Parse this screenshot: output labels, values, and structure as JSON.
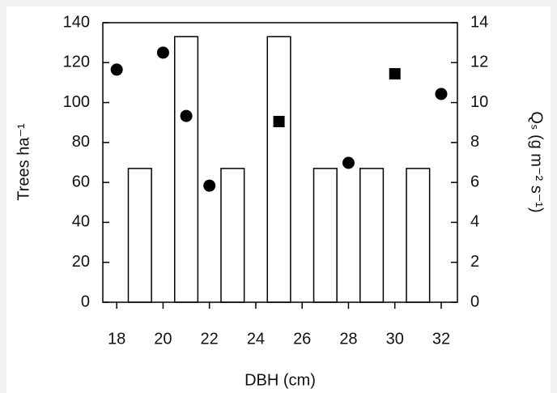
{
  "chart_data": {
    "type": "bar",
    "x_label": "DBH (cm)",
    "y_label": "Trees ha⁻¹",
    "y2_label": "Qₛ (g m⁻² s⁻¹)",
    "xlim": [
      17.4,
      32.7
    ],
    "xticks": [
      18,
      20,
      22,
      24,
      26,
      28,
      30,
      32
    ],
    "ylim": [
      0,
      140
    ],
    "yticks": [
      0,
      20,
      40,
      60,
      80,
      100,
      120,
      140
    ],
    "y2lim": [
      0,
      14
    ],
    "y2ticks": [
      0,
      2,
      4,
      6,
      8,
      10,
      12,
      14
    ],
    "series": [
      {
        "type": "bar",
        "color": "#ffffff",
        "x": [
          19,
          21,
          23,
          25,
          27,
          29,
          31
        ],
        "values": [
          67,
          133,
          67,
          133,
          67,
          67,
          67
        ]
      },
      {
        "type": "scatter",
        "marker": "circle",
        "axis": "y2",
        "color": "#000000",
        "x": [
          18,
          20,
          21,
          22,
          28,
          32
        ],
        "values": [
          11.65,
          12.5,
          9.33,
          5.84,
          6.98,
          10.43
        ]
      },
      {
        "type": "scatter",
        "marker": "square",
        "axis": "y2",
        "color": "#000000",
        "x": [
          25,
          30
        ],
        "values": [
          9.05,
          11.44
        ]
      }
    ]
  }
}
